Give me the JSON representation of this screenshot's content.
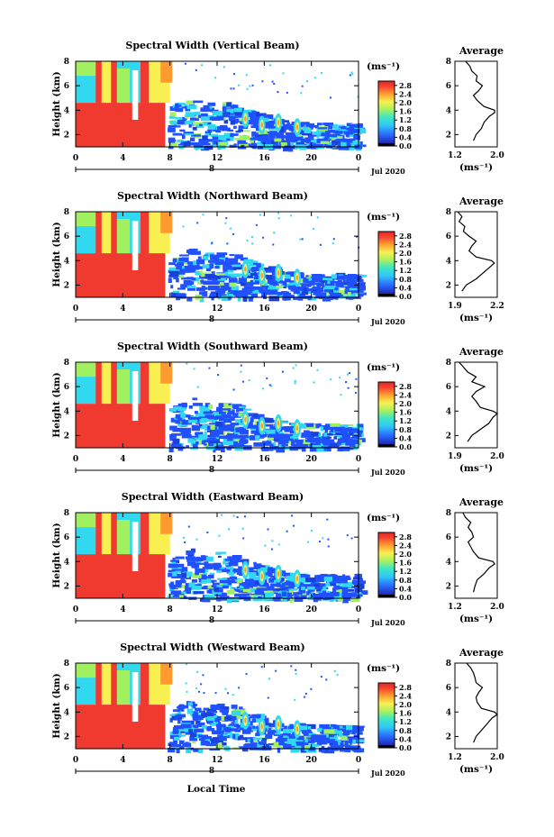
{
  "figure": {
    "xlabel": "Local Time",
    "date_label": "Jul 2020",
    "colorbar_unit": "(ms⁻¹)",
    "avg_title": "Average",
    "avg_xlabel": "(ms⁻¹)",
    "ylabel": "Height (km)",
    "day_marker": "8",
    "colors": {
      "low": "#303080",
      "blue": "#2050ff",
      "cyan": "#30d8f0",
      "green": "#a0f060",
      "yellow": "#f8f050",
      "orange": "#ff9a30",
      "red": "#f03a30"
    }
  },
  "chart_data": [
    {
      "type": "heatmap",
      "title": "Spectral Width (Vertical Beam)",
      "xlabel": "Local Time",
      "ylabel": "Height (km)",
      "x_ticks": [
        "0",
        "4",
        "8",
        "12",
        "16",
        "20",
        "0"
      ],
      "y_ticks": [
        "2",
        "4",
        "6",
        "8"
      ],
      "xlim": [
        0,
        24
      ],
      "ylim": [
        1,
        8
      ],
      "colorbar": {
        "unit": "(ms⁻¹)",
        "ticks": [
          "0.0",
          "0.4",
          "0.8",
          "1.2",
          "1.6",
          "2.0",
          "2.4",
          "2.8"
        ],
        "range": [
          0.0,
          3.0
        ]
      },
      "average_profile": {
        "title": "Average",
        "xlabel": "(ms⁻¹)",
        "x_ticks": [
          "1.2",
          "2.0"
        ],
        "xlim": [
          1.2,
          2.0
        ],
        "height": [
          1.5,
          2.0,
          2.5,
          3.0,
          3.5,
          3.8,
          4.0,
          4.3,
          4.8,
          5.2,
          5.6,
          6.0,
          6.4,
          6.8,
          7.2,
          7.6,
          8.0
        ],
        "width": [
          1.55,
          1.6,
          1.7,
          1.75,
          1.85,
          1.95,
          1.95,
          1.75,
          1.62,
          1.55,
          1.65,
          1.72,
          1.6,
          1.62,
          1.52,
          1.48,
          1.4
        ]
      }
    },
    {
      "type": "heatmap",
      "title": "Spectral Width (Northward Beam)",
      "xlabel": "Local Time",
      "ylabel": "Height (km)",
      "x_ticks": [
        "0",
        "4",
        "8",
        "12",
        "16",
        "20",
        "0"
      ],
      "y_ticks": [
        "2",
        "4",
        "6",
        "8"
      ],
      "xlim": [
        0,
        24
      ],
      "ylim": [
        1,
        8
      ],
      "colorbar": {
        "unit": "(ms⁻¹)",
        "ticks": [
          "0.0",
          "0.4",
          "0.8",
          "1.2",
          "1.6",
          "2.0",
          "2.4",
          "2.8"
        ],
        "range": [
          0.0,
          3.0
        ]
      },
      "average_profile": {
        "title": "Average",
        "xlabel": "(ms⁻¹)",
        "x_ticks": [
          "1.9",
          "2.2"
        ],
        "xlim": [
          1.9,
          2.2
        ],
        "height": [
          1.5,
          2.0,
          2.5,
          3.0,
          3.5,
          3.8,
          4.0,
          4.3,
          4.8,
          5.2,
          5.6,
          6.0,
          6.4,
          6.8,
          7.2,
          7.6,
          8.0
        ],
        "width": [
          1.95,
          1.98,
          2.05,
          2.1,
          2.15,
          2.18,
          2.16,
          2.05,
          2.0,
          2.02,
          2.05,
          2.0,
          1.96,
          1.97,
          1.93,
          1.95,
          1.92
        ]
      }
    },
    {
      "type": "heatmap",
      "title": "Spectral Width (Southward Beam)",
      "xlabel": "Local Time",
      "ylabel": "Height (km)",
      "x_ticks": [
        "0",
        "4",
        "8",
        "12",
        "16",
        "20",
        "0"
      ],
      "y_ticks": [
        "2",
        "4",
        "6",
        "8"
      ],
      "xlim": [
        0,
        24
      ],
      "ylim": [
        1,
        8
      ],
      "colorbar": {
        "unit": "(ms⁻¹)",
        "ticks": [
          "0.0",
          "0.4",
          "0.8",
          "1.2",
          "1.6",
          "2.0",
          "2.4",
          "2.8"
        ],
        "range": [
          0.0,
          3.0
        ]
      },
      "average_profile": {
        "title": "Average",
        "xlabel": "(ms⁻¹)",
        "x_ticks": [
          "1.9",
          "2.0"
        ],
        "xlim": [
          1.9,
          2.0
        ],
        "height": [
          1.5,
          2.0,
          2.5,
          3.0,
          3.5,
          3.8,
          4.0,
          4.3,
          4.8,
          5.2,
          5.6,
          6.0,
          6.4,
          6.8,
          7.2,
          7.6,
          8.0
        ],
        "width": [
          1.93,
          1.94,
          1.96,
          1.98,
          1.99,
          2.0,
          1.99,
          1.96,
          1.95,
          1.94,
          1.95,
          1.97,
          1.94,
          1.95,
          1.93,
          1.92,
          1.91
        ]
      }
    },
    {
      "type": "heatmap",
      "title": "Spectral Width (Eastward Beam)",
      "xlabel": "Local Time",
      "ylabel": "Height (km)",
      "x_ticks": [
        "0",
        "4",
        "8",
        "12",
        "16",
        "20",
        "0"
      ],
      "y_ticks": [
        "2",
        "4",
        "6",
        "8"
      ],
      "xlim": [
        0,
        24
      ],
      "ylim": [
        1,
        8
      ],
      "colorbar": {
        "unit": "(ms⁻¹)",
        "ticks": [
          "0.0",
          "0.4",
          "0.8",
          "1.2",
          "1.6",
          "2.0",
          "2.4",
          "2.8"
        ],
        "range": [
          0.0,
          3.0
        ]
      },
      "average_profile": {
        "title": "Average",
        "xlabel": "(ms⁻¹)",
        "x_ticks": [
          "1.2",
          "2.0"
        ],
        "xlim": [
          1.2,
          2.0
        ],
        "height": [
          1.5,
          2.0,
          2.5,
          3.0,
          3.5,
          3.8,
          4.0,
          4.3,
          4.8,
          5.2,
          5.6,
          6.0,
          6.4,
          6.8,
          7.2,
          7.6,
          8.0
        ],
        "width": [
          1.55,
          1.58,
          1.62,
          1.75,
          1.85,
          1.95,
          1.92,
          1.65,
          1.55,
          1.5,
          1.45,
          1.55,
          1.52,
          1.45,
          1.5,
          1.4,
          1.35
        ]
      }
    },
    {
      "type": "heatmap",
      "title": "Spectral Width (Westward Beam)",
      "xlabel": "Local Time",
      "ylabel": "Height (km)",
      "x_ticks": [
        "0",
        "4",
        "8",
        "12",
        "16",
        "20",
        "0"
      ],
      "y_ticks": [
        "2",
        "4",
        "6",
        "8"
      ],
      "xlim": [
        0,
        24
      ],
      "ylim": [
        1,
        8
      ],
      "colorbar": {
        "unit": "(ms⁻¹)",
        "ticks": [
          "0.0",
          "0.4",
          "0.8",
          "1.2",
          "1.6",
          "2.0",
          "2.4",
          "2.8"
        ],
        "range": [
          0.0,
          3.0
        ]
      },
      "average_profile": {
        "title": "Average",
        "xlabel": "(ms⁻¹)",
        "x_ticks": [
          "1.2",
          "2.0"
        ],
        "xlim": [
          1.2,
          2.0
        ],
        "height": [
          1.5,
          2.0,
          2.5,
          3.0,
          3.5,
          3.8,
          4.0,
          4.3,
          4.8,
          5.2,
          5.6,
          6.0,
          6.4,
          6.8,
          7.2,
          7.6,
          8.0
        ],
        "width": [
          1.55,
          1.6,
          1.7,
          1.8,
          1.9,
          2.0,
          1.95,
          1.7,
          1.62,
          1.6,
          1.65,
          1.72,
          1.6,
          1.58,
          1.55,
          1.5,
          1.42
        ]
      }
    }
  ]
}
